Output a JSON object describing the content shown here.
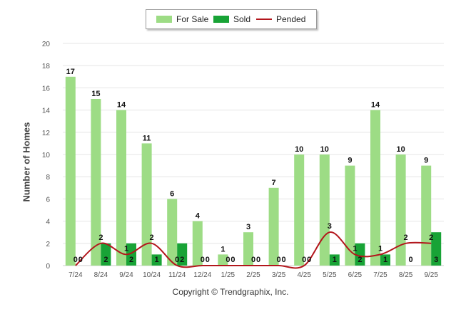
{
  "chart_data": {
    "type": "bar",
    "categories": [
      "7/24",
      "8/24",
      "9/24",
      "10/24",
      "11/24",
      "12/24",
      "1/25",
      "2/25",
      "3/25",
      "4/25",
      "5/25",
      "6/25",
      "7/25",
      "8/25",
      "9/25"
    ],
    "series": [
      {
        "name": "For Sale",
        "kind": "bar",
        "color": "#9ddc85",
        "values": [
          17,
          15,
          14,
          11,
          6,
          4,
          1,
          3,
          7,
          10,
          10,
          9,
          14,
          10,
          9
        ]
      },
      {
        "name": "Sold",
        "kind": "bar",
        "color": "#18a336",
        "values": [
          0,
          2,
          2,
          1,
          2,
          0,
          0,
          0,
          0,
          0,
          1,
          2,
          1,
          0,
          3
        ]
      },
      {
        "name": "Pended",
        "kind": "line",
        "color": "#b3161c",
        "values": [
          0,
          2,
          1,
          2,
          0,
          0,
          0,
          0,
          0,
          0,
          3,
          1,
          1,
          2,
          2
        ]
      }
    ],
    "ylabel": "Number of Homes",
    "xlabel": "",
    "ylim": [
      0,
      20
    ],
    "yticks": [
      0,
      2,
      4,
      6,
      8,
      10,
      12,
      14,
      16,
      18,
      20
    ],
    "legend_position": "top-center"
  },
  "legend": {
    "for_sale": "For Sale",
    "sold": "Sold",
    "pended": "Pended"
  },
  "footer": "Copyright © Trendgraphix, Inc.",
  "colors": {
    "for_sale": "#9ddc85",
    "sold": "#18a336",
    "pended": "#b3161c",
    "grid": "#e6e6e6"
  }
}
